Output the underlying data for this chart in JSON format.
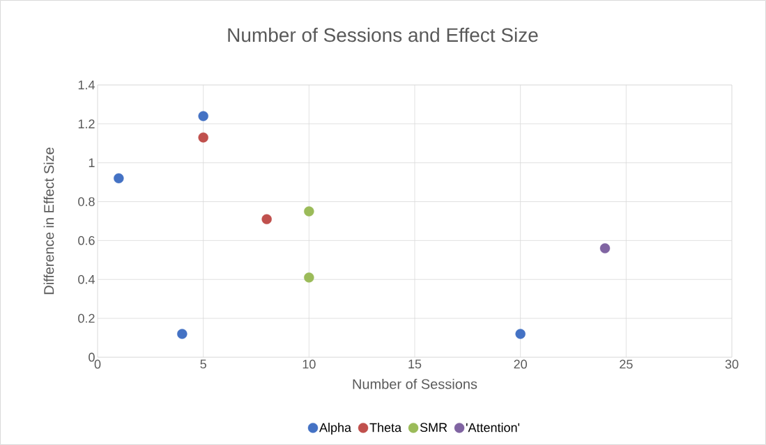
{
  "chart_data": {
    "type": "scatter",
    "title": "Number of Sessions and Effect Size",
    "xlabel": "Number of Sessions",
    "ylabel": "Difference in Effect Size",
    "series": [
      {
        "name": "Alpha",
        "color": "#4472c4",
        "x": [
          1,
          5,
          4,
          20
        ],
        "values": [
          0.92,
          1.24,
          0.12,
          0.12
        ]
      },
      {
        "name": "Theta",
        "color": "#c0504d",
        "x": [
          5,
          8
        ],
        "values": [
          1.13,
          0.71
        ]
      },
      {
        "name": "SMR",
        "color": "#9bbb59",
        "x": [
          10,
          10
        ],
        "values": [
          0.75,
          0.41
        ]
      },
      {
        "name": "'Attention'",
        "color": "#8064a2",
        "x": [
          24
        ],
        "values": [
          0.56
        ]
      }
    ],
    "xlim": [
      0,
      30
    ],
    "xticks": [
      0,
      5,
      10,
      15,
      20,
      25,
      30
    ],
    "ylim": [
      0,
      1.4
    ],
    "yticks": [
      0,
      0.2,
      0.4,
      0.6,
      0.8,
      1,
      1.2,
      1.4
    ],
    "grid": true,
    "legend": "bottom",
    "marker": "circle"
  }
}
